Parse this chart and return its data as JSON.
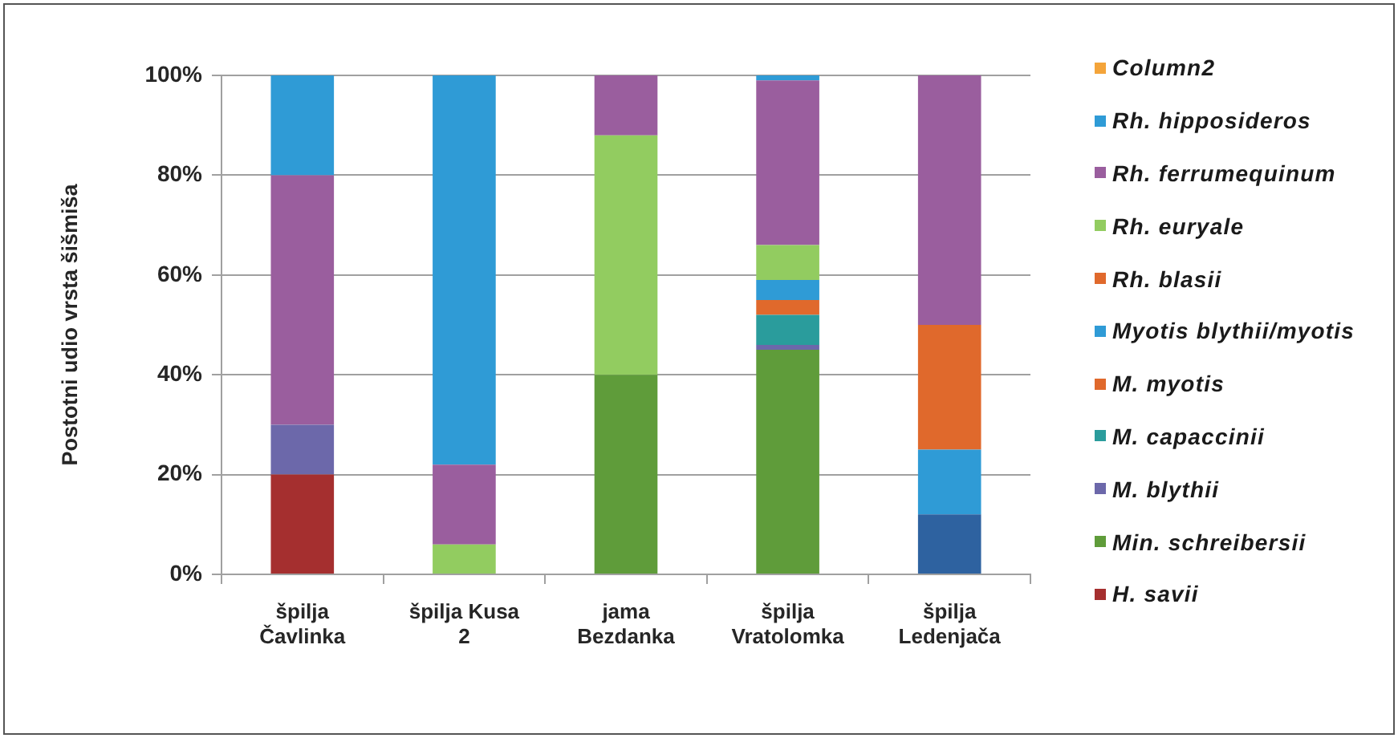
{
  "chart_data": {
    "type": "bar",
    "stacked": true,
    "categories": [
      "špilja Čavlinka",
      "špilja Kusa 2",
      "jama Bezdanka",
      "špilja Vratolomka",
      "špilja Ledenjača"
    ],
    "ylabel": "Postotni udio vrsta šišmiša",
    "ylim": [
      0,
      100
    ],
    "yticks": [
      {
        "value": 0,
        "label": "0%"
      },
      {
        "value": 20,
        "label": "20%"
      },
      {
        "value": 40,
        "label": "40%"
      },
      {
        "value": 60,
        "label": "60%"
      },
      {
        "value": 80,
        "label": "80%"
      },
      {
        "value": 100,
        "label": "100%"
      }
    ],
    "grid": "y",
    "legend": "right",
    "series": [
      {
        "color": "#2e62a0",
        "values": [
          null,
          null,
          null,
          null,
          12
        ]
      },
      {
        "name": "H. savii",
        "color": "#a52f2f",
        "values": [
          20,
          null,
          null,
          null,
          null
        ]
      },
      {
        "name": "Min. schreibersii",
        "color": "#5f9c3a",
        "values": [
          null,
          null,
          40,
          45,
          null
        ]
      },
      {
        "name": "M. blythii",
        "color": "#6c68aa",
        "values": [
          10,
          null,
          null,
          1,
          null
        ]
      },
      {
        "name": "M. capaccinii",
        "color": "#2a9c9c",
        "values": [
          null,
          null,
          null,
          6,
          null
        ]
      },
      {
        "name": "M. myotis",
        "color": "#e0692c",
        "values": [
          null,
          null,
          null,
          3,
          null
        ]
      },
      {
        "name": "Myotis blythii/myotis",
        "color": "#2f9bd6",
        "values": [
          null,
          null,
          null,
          4,
          13
        ]
      },
      {
        "name": "Rh. blasii",
        "color": "#e0692c",
        "values": [
          null,
          null,
          null,
          null,
          25
        ]
      },
      {
        "name": "Rh. euryale",
        "color": "#92cc60",
        "values": [
          null,
          6,
          48,
          7,
          null
        ]
      },
      {
        "name": "Rh. ferrumequinum",
        "color": "#9a5e9e",
        "values": [
          50,
          16,
          12,
          33,
          50
        ]
      },
      {
        "name": "Rh. hipposideros",
        "color": "#2f9bd6",
        "values": [
          20,
          78,
          null,
          1,
          null
        ]
      },
      {
        "name": "Column2",
        "color": "#f4a43a",
        "values": [
          null,
          null,
          null,
          null,
          null
        ]
      }
    ]
  }
}
